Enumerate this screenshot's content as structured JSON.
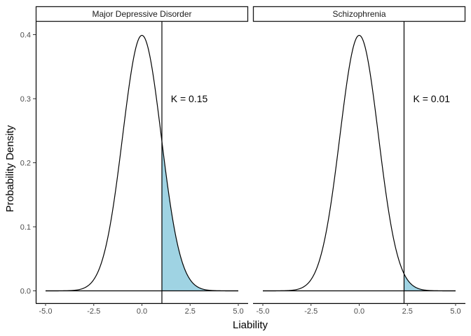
{
  "chart_data": {
    "type": "area",
    "xlabel": "Liability",
    "ylabel": "Probability Density",
    "xlim": [
      -5.0,
      5.0
    ],
    "ylim": [
      0.0,
      0.4
    ],
    "x_ticks": [
      "-5.0",
      "-2.5",
      "0.0",
      "2.5",
      "5.0"
    ],
    "y_ticks": [
      "0.0",
      "0.1",
      "0.2",
      "0.3",
      "0.4"
    ],
    "curve": "standard normal density",
    "shade_color": "#9fd3e3",
    "grid": false,
    "panels": [
      {
        "title": "Major Depressive Disorder",
        "threshold": 1.036,
        "annotation": "K = 0.15",
        "annotation_x": 1.5,
        "annotation_y": 0.3
      },
      {
        "title": "Schizophrenia",
        "threshold": 2.326,
        "annotation": "K = 0.01",
        "annotation_x": 2.8,
        "annotation_y": 0.3
      }
    ]
  }
}
